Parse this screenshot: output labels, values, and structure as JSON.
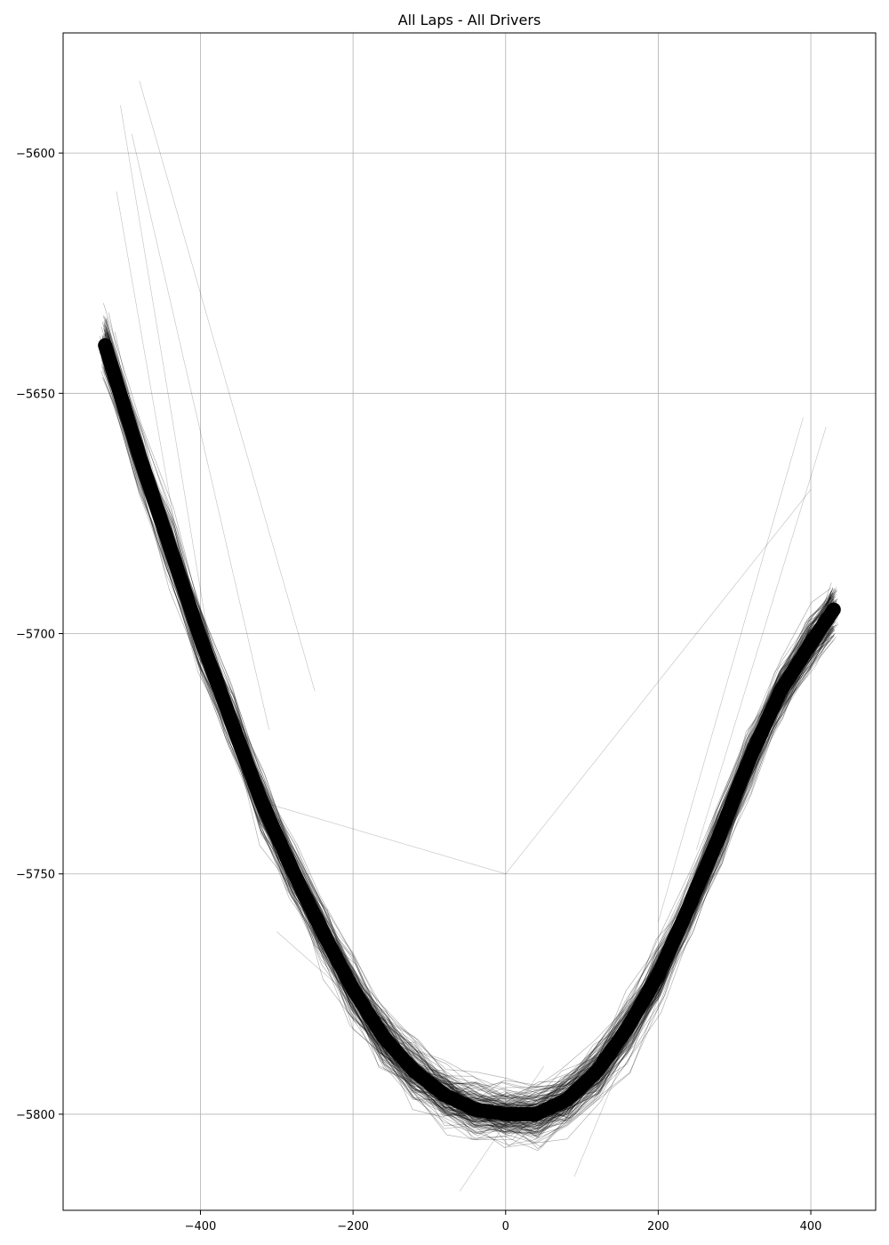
{
  "chart_data": {
    "type": "line",
    "title": "All Laps - All Drivers",
    "xlabel": "",
    "ylabel": "",
    "xlim": [
      -580,
      485
    ],
    "ylim": [
      -5820,
      -5575
    ],
    "x_ticks": [
      -400,
      -200,
      0,
      200,
      400
    ],
    "x_tick_labels": [
      "−400",
      "−200",
      "0",
      "200",
      "400"
    ],
    "y_ticks": [
      -5600,
      -5650,
      -5700,
      -5750,
      -5800
    ],
    "y_tick_labels": [
      "−5600",
      "−5650",
      "−5700",
      "−5750",
      "−5800"
    ],
    "grid": true,
    "legend": "none",
    "line_color": "#000000",
    "grid_color": "#b0b0b0",
    "series_description_values": {
      "trace_count": 180,
      "track_centerline": {
        "x": [
          -525,
          -480,
          -440,
          -400,
          -360,
          -320,
          -280,
          -240,
          -200,
          -160,
          -120,
          -80,
          -40,
          0,
          40,
          80,
          120,
          160,
          200,
          240,
          280,
          320,
          360,
          400,
          430
        ],
        "y": [
          -5640,
          -5663,
          -5682,
          -5701,
          -5718,
          -5735,
          -5749,
          -5762,
          -5774,
          -5784,
          -5791,
          -5796,
          -5799,
          -5800,
          -5800,
          -5797,
          -5791,
          -5782,
          -5771,
          -5757,
          -5742,
          -5726,
          -5712,
          -5702,
          -5695
        ]
      },
      "outlier_segments": [
        {
          "x": [
            -480,
            -250
          ],
          "y": [
            -5585,
            -5712
          ]
        },
        {
          "x": [
            -490,
            -310
          ],
          "y": [
            -5596,
            -5720
          ]
        },
        {
          "x": [
            -505,
            -380
          ],
          "y": [
            -5590,
            -5710
          ]
        },
        {
          "x": [
            -510,
            -420
          ],
          "y": [
            -5608,
            -5690
          ]
        },
        {
          "x": [
            -320,
            0
          ],
          "y": [
            -5735,
            -5750
          ]
        },
        {
          "x": [
            0,
            400
          ],
          "y": [
            -5750,
            -5670
          ]
        },
        {
          "x": [
            -60,
            50
          ],
          "y": [
            -5816,
            -5790
          ]
        },
        {
          "x": [
            90,
            150
          ],
          "y": [
            -5813,
            -5790
          ]
        },
        {
          "x": [
            390,
            200
          ],
          "y": [
            -5655,
            -5760
          ]
        },
        {
          "x": [
            420,
            250
          ],
          "y": [
            -5657,
            -5745
          ]
        },
        {
          "x": [
            -300,
            -100
          ],
          "y": [
            -5762,
            -5790
          ]
        }
      ]
    }
  }
}
